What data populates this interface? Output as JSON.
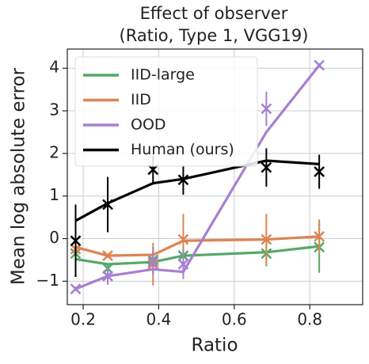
{
  "chart_data": {
    "type": "line",
    "title": [
      "Effect of observer",
      "(Ratio, Type 1, VGG19)"
    ],
    "xlabel": "Ratio",
    "ylabel": "Mean log absolute error",
    "x": [
      0.18,
      0.265,
      0.385,
      0.465,
      0.685,
      0.825
    ],
    "xlim": [
      0.158,
      0.94
    ],
    "xticks": [
      0.2,
      0.4,
      0.6,
      0.8
    ],
    "ylim": [
      -1.55,
      4.45
    ],
    "yticks": [
      {
        "value": -1,
        "label": "−1"
      },
      0,
      1,
      2,
      3,
      4
    ],
    "grid": true,
    "legend": "upper left",
    "series": [
      {
        "name": "IID-large",
        "color": "#55a868",
        "values": [
          -0.48,
          -0.6,
          -0.55,
          -0.4,
          -0.32,
          -0.18
        ],
        "markers": [
          -0.35,
          -0.7,
          -0.5,
          -0.4,
          -0.35,
          -0.2
        ],
        "errors": [
          0.2,
          0.1,
          0.3,
          0.2,
          0.3,
          0.6
        ]
      },
      {
        "name": "IID",
        "color": "#dd8452",
        "values": [
          -0.2,
          -0.4,
          -0.38,
          -0.05,
          -0.02,
          0.05
        ],
        "markers": [
          -0.25,
          -0.4,
          -0.6,
          -0.02,
          -0.02,
          0.05
        ],
        "errors": [
          0.1,
          0.05,
          0.5,
          0.6,
          0.6,
          0.4
        ]
      },
      {
        "name": "OOD",
        "color": "#a77fd0",
        "values": [
          -1.18,
          -0.88,
          -0.72,
          -0.78,
          2.5,
          4.07
        ],
        "markers": [
          -1.18,
          -0.88,
          -0.55,
          -0.6,
          3.05,
          4.07
        ],
        "errors": [
          0.05,
          0.2,
          0.3,
          0.35,
          0.4,
          0.05
        ]
      },
      {
        "name": "Human (ours)",
        "color": "#000000",
        "values": [
          0.42,
          0.83,
          1.3,
          1.4,
          1.83,
          1.75
        ],
        "markers": [
          -0.05,
          0.8,
          1.62,
          1.38,
          1.67,
          1.57
        ],
        "errors": [
          0.85,
          0.65,
          0.35,
          0.35,
          0.45,
          0.4
        ]
      }
    ]
  }
}
